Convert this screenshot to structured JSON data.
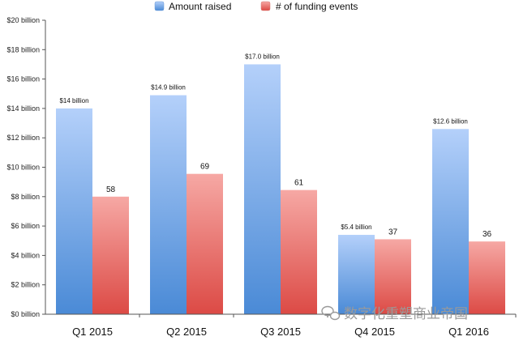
{
  "chart_data": {
    "type": "bar",
    "categories": [
      "Q1 2015",
      "Q2 2015",
      "Q3 2015",
      "Q4 2015",
      "Q1 2016"
    ],
    "series": [
      {
        "name": "Amount raised",
        "values": [
          14,
          14.9,
          17.0,
          5.4,
          12.6
        ],
        "data_labels": [
          "$14 billion",
          "$14.9 billion",
          "$17.0 billion",
          "$5.4 billion",
          "$12.6 billion"
        ],
        "color_top": "#b4d0fa",
        "color_bottom": "#4a8ad6"
      },
      {
        "name": "# of funding events",
        "values": [
          58,
          69,
          61,
          37,
          36
        ],
        "bar_height_in_billions": [
          8.0,
          9.55,
          8.45,
          5.1,
          4.95
        ],
        "data_labels": [
          "58",
          "69",
          "61",
          "37",
          "36"
        ],
        "color_top": "#f6a8a4",
        "color_bottom": "#dc4a45"
      }
    ],
    "y_ticks": [
      "$0 billion",
      "$2 billion",
      "$4 billion",
      "$6 billion",
      "$8 billion",
      "$10 billion",
      "$12 billion",
      "$14 billion",
      "$16 billion",
      "$18 billion",
      "$20 billion"
    ],
    "ylim": [
      0,
      20
    ],
    "grid": false,
    "legend_position": "top",
    "title": "",
    "xlabel": "",
    "ylabel": ""
  },
  "watermark": {
    "text": "数字化重塑商业帝国",
    "icon": "wechat-bubble-icon"
  }
}
